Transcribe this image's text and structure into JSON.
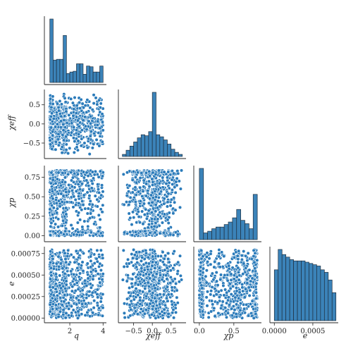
{
  "chart_data": {
    "type": "scatter",
    "variables": [
      {
        "key": "q",
        "label": "q",
        "range": [
          0.6,
          4.2
        ],
        "ticks": [
          2,
          4
        ],
        "tick_labels": [
          "2",
          "4"
        ]
      },
      {
        "key": "chi_eff",
        "label": "χeff",
        "range": [
          -0.85,
          0.9
        ],
        "ticks": [
          -0.5,
          0.0,
          0.5
        ],
        "tick_labels": [
          "−0.5",
          "0.0",
          "0.5"
        ]
      },
      {
        "key": "chi_p",
        "label": "χp",
        "range": [
          -0.05,
          0.9
        ],
        "ticks": [
          0.0,
          0.25,
          0.5,
          0.75
        ],
        "tick_labels": [
          "0.00",
          "0.25",
          "0.50",
          "0.75"
        ]
      },
      {
        "key": "e",
        "label": "e",
        "range": [
          -3e-05,
          0.00083
        ],
        "ticks": [
          0.0,
          0.00025,
          0.0005,
          0.00075
        ],
        "tick_labels": [
          "0.00000",
          "0.00025",
          "0.00050",
          "0.00075"
        ]
      }
    ],
    "bottom_tick_labels": {
      "q": [
        "2",
        "4"
      ],
      "chi_eff": [
        "−0.5",
        "0.0",
        "0.5"
      ],
      "chi_p": [
        "0.0",
        "0.5"
      ],
      "e": [
        "0.0000",
        "0.0005"
      ]
    },
    "histograms": {
      "q": {
        "edges": [
          0.8,
          1.0,
          1.2,
          1.4,
          1.6,
          1.8,
          2.0,
          2.2,
          2.4,
          2.6,
          2.8,
          3.0,
          3.2,
          3.4,
          3.6,
          3.8,
          4.0
        ],
        "counts": [
          85,
          30,
          31,
          31,
          63,
          12,
          14,
          15,
          25,
          25,
          11,
          22,
          21,
          14,
          14,
          22
        ]
      },
      "chi_eff": {
        "edges": [
          -0.8,
          -0.7,
          -0.6,
          -0.5,
          -0.4,
          -0.3,
          -0.2,
          -0.1,
          0.0,
          0.1,
          0.2,
          0.3,
          0.4,
          0.5,
          0.6,
          0.7,
          0.8
        ],
        "counts": [
          2,
          6,
          10,
          14,
          18,
          21,
          20,
          24,
          62,
          21,
          19,
          16,
          12,
          7,
          4,
          2
        ]
      },
      "chi_p": {
        "edges": [
          0.0,
          0.06,
          0.12,
          0.18,
          0.24,
          0.3,
          0.36,
          0.42,
          0.48,
          0.54,
          0.6,
          0.66,
          0.72,
          0.78,
          0.84
        ],
        "counts": [
          85,
          8,
          10,
          13,
          15,
          15,
          18,
          21,
          26,
          36,
          23,
          19,
          13,
          54
        ]
      },
      "e": {
        "edges": [
          0.0,
          5e-05,
          0.0001,
          0.00015,
          0.0002,
          0.00025,
          0.0003,
          0.00035,
          0.0004,
          0.00045,
          0.0005,
          0.00055,
          0.0006,
          0.00065,
          0.0007,
          0.00075,
          0.0008
        ],
        "counts": [
          40,
          56,
          52,
          50,
          48,
          47,
          47,
          47,
          46,
          45,
          44,
          43,
          40,
          38,
          32,
          22
        ]
      }
    },
    "scatter_samples": 700,
    "grid": false,
    "legend": "none"
  }
}
